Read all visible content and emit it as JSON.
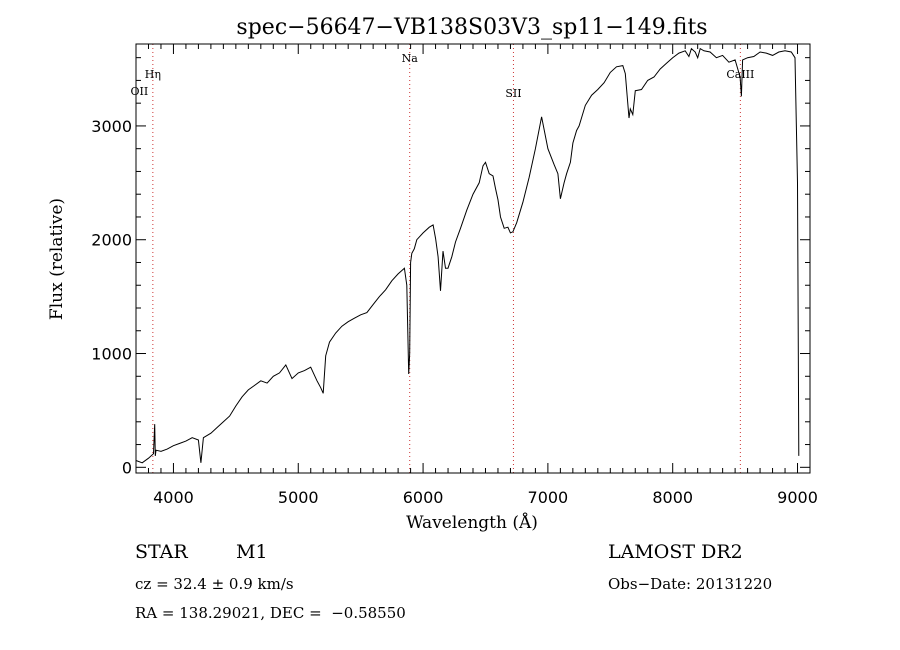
{
  "chart_data": {
    "type": "line",
    "title": "spec−56647−VB138S03V3_sp11−149.fits",
    "xlabel": "Wavelength (Å)",
    "ylabel": "Flux (relative)",
    "xlim": [
      3700,
      9100
    ],
    "ylim": [
      -50,
      3720
    ],
    "xticks": [
      4000,
      5000,
      6000,
      7000,
      8000,
      9000
    ],
    "yticks": [
      0,
      1000,
      2000,
      3000
    ],
    "grid": false,
    "series": [
      {
        "color": "#000000",
        "x": [
          3700,
          3750,
          3800,
          3840,
          3850,
          3855,
          3860,
          3900,
          3950,
          4000,
          4050,
          4100,
          4150,
          4200,
          4220,
          4240,
          4300,
          4350,
          4400,
          4450,
          4500,
          4550,
          4600,
          4650,
          4700,
          4750,
          4800,
          4850,
          4900,
          4950,
          5000,
          5050,
          5100,
          5150,
          5180,
          5200,
          5220,
          5250,
          5300,
          5350,
          5400,
          5450,
          5500,
          5550,
          5600,
          5650,
          5700,
          5750,
          5800,
          5850,
          5870,
          5885,
          5893,
          5900,
          5910,
          5930,
          5950,
          6000,
          6050,
          6080,
          6100,
          6120,
          6140,
          6160,
          6180,
          6200,
          6230,
          6260,
          6300,
          6350,
          6400,
          6450,
          6480,
          6500,
          6530,
          6560,
          6580,
          6600,
          6620,
          6650,
          6680,
          6700,
          6720,
          6750,
          6800,
          6850,
          6900,
          6950,
          7000,
          7050,
          7080,
          7100,
          7130,
          7150,
          7180,
          7200,
          7230,
          7250,
          7300,
          7350,
          7400,
          7450,
          7500,
          7550,
          7600,
          7620,
          7650,
          7660,
          7680,
          7700,
          7750,
          7800,
          7850,
          7900,
          7950,
          8000,
          8050,
          8100,
          8130,
          8150,
          8180,
          8200,
          8220,
          8250,
          8300,
          8350,
          8400,
          8450,
          8500,
          8540,
          8550,
          8560,
          8600,
          8650,
          8700,
          8750,
          8800,
          8850,
          8900,
          8950,
          8980,
          9000,
          9010
        ],
        "y": [
          60,
          40,
          80,
          120,
          380,
          100,
          150,
          140,
          160,
          190,
          210,
          230,
          260,
          240,
          40,
          260,
          300,
          350,
          400,
          450,
          540,
          620,
          680,
          720,
          760,
          740,
          800,
          830,
          900,
          780,
          830,
          850,
          880,
          760,
          700,
          650,
          980,
          1100,
          1180,
          1240,
          1280,
          1310,
          1340,
          1360,
          1430,
          1500,
          1560,
          1640,
          1700,
          1750,
          1600,
          820,
          1000,
          1800,
          1880,
          1920,
          2000,
          2060,
          2110,
          2130,
          2010,
          1850,
          1550,
          1900,
          1750,
          1750,
          1850,
          1980,
          2100,
          2260,
          2400,
          2500,
          2650,
          2680,
          2580,
          2560,
          2450,
          2350,
          2200,
          2100,
          2110,
          2060,
          2070,
          2150,
          2330,
          2550,
          2800,
          3080,
          2800,
          2660,
          2580,
          2360,
          2500,
          2580,
          2680,
          2850,
          2960,
          3000,
          3180,
          3270,
          3320,
          3380,
          3470,
          3520,
          3530,
          3460,
          3070,
          3150,
          3100,
          3310,
          3320,
          3400,
          3430,
          3500,
          3550,
          3600,
          3640,
          3660,
          3610,
          3680,
          3650,
          3600,
          3680,
          3660,
          3650,
          3600,
          3620,
          3560,
          3580,
          3430,
          3260,
          3580,
          3600,
          3610,
          3650,
          3640,
          3620,
          3650,
          3660,
          3650,
          3600,
          2500,
          100
        ]
      }
    ],
    "annotations": [
      {
        "label": "OII",
        "x": 3727,
        "line": false
      },
      {
        "label": "Hη",
        "x": 3835,
        "line": true
      },
      {
        "label": "Na",
        "x": 5893,
        "line": true
      },
      {
        "label": "SII",
        "x": 6724,
        "line": true
      },
      {
        "label": "CaIII",
        "x": 8542,
        "line": true
      }
    ]
  },
  "info": {
    "object_type": "STAR",
    "subclass": "M1",
    "cz": "cz = 32.4 ± 0.9 km/s",
    "coords": "RA = 138.29021, DEC =  −0.58550",
    "survey": "LAMOST DR2",
    "obs_date": "Obs−Date: 20131220"
  },
  "colors": {
    "spectrum": "#000000",
    "line_marker": "#cc3333",
    "axes": "#000000"
  }
}
